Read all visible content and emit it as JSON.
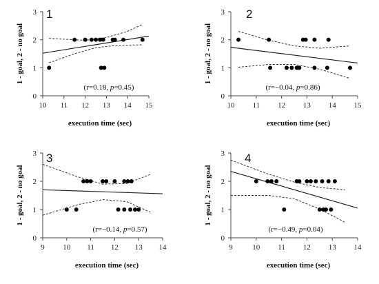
{
  "chart_data": [
    {
      "type": "scatter",
      "panel_label": "1",
      "xlabel": "execution time (sec)",
      "ylabel": "1 - goal, 2 - no goal",
      "xlim": [
        10,
        15
      ],
      "ylim": [
        0,
        3
      ],
      "xticks": [
        10,
        11,
        12,
        13,
        14,
        15
      ],
      "yticks": [
        0,
        1,
        2,
        3
      ],
      "points": [
        {
          "x": 10.3,
          "y": 1
        },
        {
          "x": 11.5,
          "y": 2
        },
        {
          "x": 12.0,
          "y": 2
        },
        {
          "x": 12.3,
          "y": 2
        },
        {
          "x": 12.5,
          "y": 2
        },
        {
          "x": 12.7,
          "y": 2
        },
        {
          "x": 12.85,
          "y": 2
        },
        {
          "x": 12.75,
          "y": 1
        },
        {
          "x": 12.9,
          "y": 1
        },
        {
          "x": 13.3,
          "y": 2
        },
        {
          "x": 13.4,
          "y": 2
        },
        {
          "x": 13.8,
          "y": 2
        },
        {
          "x": 14.7,
          "y": 2
        }
      ],
      "regression_line": [
        {
          "x": 10,
          "y": 1.52
        },
        {
          "x": 15,
          "y": 2.13
        }
      ],
      "ci_upper": [
        {
          "x": 10.3,
          "y": 2.05
        },
        {
          "x": 12.0,
          "y": 1.98
        },
        {
          "x": 13.0,
          "y": 2.08
        },
        {
          "x": 14.0,
          "y": 2.3
        },
        {
          "x": 14.7,
          "y": 2.55
        }
      ],
      "ci_lower": [
        {
          "x": 10.3,
          "y": 1.18
        },
        {
          "x": 11.5,
          "y": 1.5
        },
        {
          "x": 12.5,
          "y": 1.72
        },
        {
          "x": 13.5,
          "y": 1.8
        },
        {
          "x": 14.7,
          "y": 1.82
        }
      ],
      "annotation": {
        "prefix": "(r=0.18, ",
        "p_symbol": "p",
        "suffix": "=0.45)"
      }
    },
    {
      "type": "scatter",
      "panel_label": "2",
      "xlabel": "execution time (sec)",
      "ylabel": "1 - goal, 2 - no goal",
      "xlim": [
        10,
        15
      ],
      "ylim": [
        0,
        3
      ],
      "xticks": [
        10,
        11,
        12,
        13,
        14,
        15
      ],
      "yticks": [
        0,
        1,
        2,
        3
      ],
      "points": [
        {
          "x": 10.3,
          "y": 2
        },
        {
          "x": 11.5,
          "y": 2
        },
        {
          "x": 11.55,
          "y": 1
        },
        {
          "x": 12.2,
          "y": 1
        },
        {
          "x": 12.4,
          "y": 1
        },
        {
          "x": 12.6,
          "y": 1
        },
        {
          "x": 12.7,
          "y": 1
        },
        {
          "x": 12.85,
          "y": 2
        },
        {
          "x": 12.95,
          "y": 2
        },
        {
          "x": 13.3,
          "y": 1
        },
        {
          "x": 13.3,
          "y": 2
        },
        {
          "x": 13.8,
          "y": 1
        },
        {
          "x": 13.85,
          "y": 2
        },
        {
          "x": 14.7,
          "y": 1
        }
      ],
      "regression_line": [
        {
          "x": 10,
          "y": 1.73
        },
        {
          "x": 15,
          "y": 1.17
        }
      ],
      "ci_upper": [
        {
          "x": 10.3,
          "y": 2.3
        },
        {
          "x": 11.5,
          "y": 1.98
        },
        {
          "x": 12.5,
          "y": 1.78
        },
        {
          "x": 13.5,
          "y": 1.7
        },
        {
          "x": 14.7,
          "y": 1.78
        }
      ],
      "ci_lower": [
        {
          "x": 10.3,
          "y": 1.02
        },
        {
          "x": 11.5,
          "y": 1.12
        },
        {
          "x": 12.5,
          "y": 1.12
        },
        {
          "x": 13.5,
          "y": 0.95
        },
        {
          "x": 14.7,
          "y": 0.62
        }
      ],
      "annotation": {
        "prefix": "(r=−0.04, ",
        "p_symbol": "p",
        "suffix": "=0.86)"
      }
    },
    {
      "type": "scatter",
      "panel_label": "3",
      "xlabel": "execution time (sec)",
      "ylabel": "1 - goal, 2 - no goal",
      "xlim": [
        9,
        14
      ],
      "ylim": [
        0,
        3
      ],
      "xticks": [
        9,
        10,
        11,
        12,
        13,
        14
      ],
      "yticks": [
        0,
        1,
        2,
        3
      ],
      "points": [
        {
          "x": 10.0,
          "y": 1
        },
        {
          "x": 10.4,
          "y": 1
        },
        {
          "x": 10.7,
          "y": 2
        },
        {
          "x": 10.85,
          "y": 2
        },
        {
          "x": 11.0,
          "y": 2
        },
        {
          "x": 11.5,
          "y": 2
        },
        {
          "x": 11.65,
          "y": 2
        },
        {
          "x": 12.0,
          "y": 2
        },
        {
          "x": 12.15,
          "y": 1
        },
        {
          "x": 12.4,
          "y": 1
        },
        {
          "x": 12.4,
          "y": 2
        },
        {
          "x": 12.55,
          "y": 2
        },
        {
          "x": 12.65,
          "y": 1
        },
        {
          "x": 12.7,
          "y": 2
        },
        {
          "x": 12.85,
          "y": 1
        },
        {
          "x": 13.0,
          "y": 1
        }
      ],
      "regression_line": [
        {
          "x": 9,
          "y": 1.7
        },
        {
          "x": 14,
          "y": 1.56
        }
      ],
      "ci_upper": [
        {
          "x": 9.0,
          "y": 2.6
        },
        {
          "x": 10.5,
          "y": 2.15
        },
        {
          "x": 11.5,
          "y": 1.9
        },
        {
          "x": 12.5,
          "y": 1.92
        },
        {
          "x": 13.5,
          "y": 2.25
        }
      ],
      "ci_lower": [
        {
          "x": 9.0,
          "y": 0.8
        },
        {
          "x": 10.5,
          "y": 1.18
        },
        {
          "x": 11.5,
          "y": 1.35
        },
        {
          "x": 12.5,
          "y": 1.28
        },
        {
          "x": 13.5,
          "y": 0.9
        }
      ],
      "annotation": {
        "prefix": "(r=−0.14, ",
        "p_symbol": "p",
        "suffix": "=0.57)"
      }
    },
    {
      "type": "scatter",
      "panel_label": "4",
      "xlabel": "execution time (sec)",
      "ylabel": "1 - goal, 2 - no goal",
      "xlim": [
        9,
        14
      ],
      "ylim": [
        0,
        3
      ],
      "xticks": [
        9,
        10,
        11,
        12,
        13,
        14
      ],
      "yticks": [
        0,
        1,
        2,
        3
      ],
      "points": [
        {
          "x": 10.0,
          "y": 2
        },
        {
          "x": 10.45,
          "y": 2
        },
        {
          "x": 10.6,
          "y": 2
        },
        {
          "x": 10.8,
          "y": 2
        },
        {
          "x": 11.1,
          "y": 1
        },
        {
          "x": 11.6,
          "y": 2
        },
        {
          "x": 11.7,
          "y": 2
        },
        {
          "x": 12.0,
          "y": 2
        },
        {
          "x": 12.15,
          "y": 2
        },
        {
          "x": 12.35,
          "y": 2
        },
        {
          "x": 12.5,
          "y": 1
        },
        {
          "x": 12.6,
          "y": 2
        },
        {
          "x": 12.65,
          "y": 1
        },
        {
          "x": 12.75,
          "y": 1
        },
        {
          "x": 12.85,
          "y": 2
        },
        {
          "x": 12.95,
          "y": 1
        },
        {
          "x": 13.1,
          "y": 2
        }
      ],
      "regression_line": [
        {
          "x": 9,
          "y": 2.35
        },
        {
          "x": 14,
          "y": 1.05
        }
      ],
      "ci_upper": [
        {
          "x": 9.0,
          "y": 2.75
        },
        {
          "x": 10.5,
          "y": 2.25
        },
        {
          "x": 11.5,
          "y": 1.97
        },
        {
          "x": 12.5,
          "y": 1.78
        },
        {
          "x": 13.5,
          "y": 1.7
        }
      ],
      "ci_lower": [
        {
          "x": 9.0,
          "y": 1.5
        },
        {
          "x": 10.5,
          "y": 1.5
        },
        {
          "x": 11.5,
          "y": 1.38
        },
        {
          "x": 12.5,
          "y": 1.02
        },
        {
          "x": 13.5,
          "y": 0.55
        }
      ],
      "annotation": {
        "prefix": "(r=−0.49, ",
        "p_symbol": "p",
        "suffix": "=0.04)"
      }
    }
  ]
}
